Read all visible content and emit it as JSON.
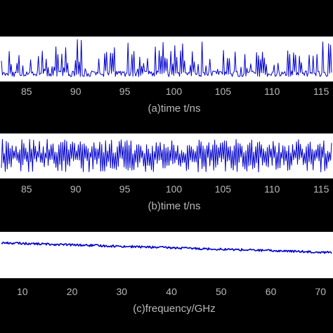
{
  "chart_data": [
    {
      "id": "a",
      "type": "line",
      "xlabel": "(a)time t/ns",
      "xlim": [
        82.3,
        116.2
      ],
      "xticks": [
        "85",
        "90",
        "95",
        "100",
        "105",
        "110",
        "115"
      ],
      "xtick_values": [
        85,
        90,
        95,
        100,
        105,
        110,
        115
      ],
      "signal": "sparse spiky pulses rising from a baseline near the bottom",
      "color": "#0000cc"
    },
    {
      "id": "b",
      "type": "line",
      "xlabel": "(b)time t/ns",
      "xlim": [
        82.3,
        116.2
      ],
      "xticks": [
        "85",
        "90",
        "95",
        "100",
        "105",
        "110",
        "115"
      ],
      "xtick_values": [
        85,
        90,
        95,
        100,
        105,
        110,
        115
      ],
      "signal": "dense full-height oscillation",
      "color": "#0000cc"
    },
    {
      "id": "c",
      "type": "line",
      "xlabel": "(c)frequency/GHz",
      "xlim": [
        5.5,
        72.5
      ],
      "xticks": [
        "10",
        "20",
        "30",
        "40",
        "50",
        "60",
        "70"
      ],
      "xtick_values": [
        10,
        20,
        30,
        40,
        50,
        60,
        70
      ],
      "signal": "flat noisy spectrum slowly decreasing with frequency",
      "color": "#0000cc"
    }
  ]
}
